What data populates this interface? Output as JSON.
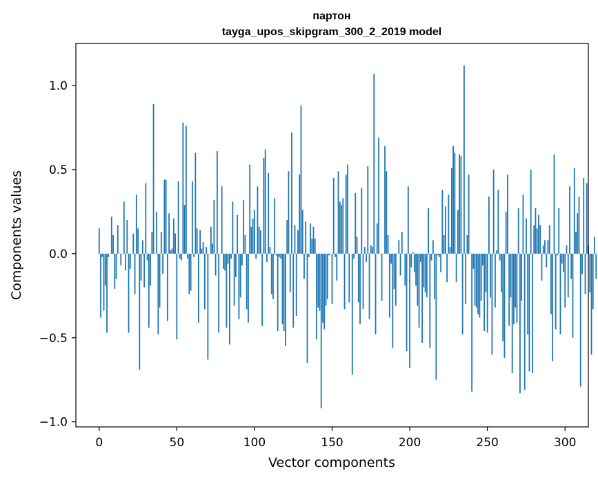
{
  "chart_data": {
    "type": "bar",
    "title": "партон",
    "subtitle": "tayga_upos_skipgram_300_2_2019 model",
    "xlabel": "Vector components",
    "ylabel": "Components values",
    "xlim": [
      -15,
      315
    ],
    "ylim": [
      -1.03,
      1.25
    ],
    "xticks": [
      0,
      50,
      100,
      150,
      200,
      250,
      300
    ],
    "xtick_labels": [
      "0",
      "50",
      "100",
      "150",
      "200",
      "250",
      "300"
    ],
    "yticks": [
      -1.0,
      -0.5,
      0.0,
      0.5,
      1.0
    ],
    "ytick_labels": [
      "−1.0",
      "−0.5",
      "0.0",
      "0.5",
      "1.0"
    ],
    "color": "#1f77b4",
    "values": [
      0.15,
      -0.38,
      -0.02,
      -0.34,
      -0.19,
      -0.47,
      -0.02,
      0.0,
      0.22,
      0.11,
      -0.21,
      -0.15,
      0.17,
      0.0,
      -0.07,
      0.0,
      0.31,
      -0.1,
      0.2,
      -0.47,
      -0.09,
      0.0,
      0.12,
      -0.24,
      0.35,
      0.15,
      -0.69,
      -0.16,
      0.08,
      -0.2,
      0.42,
      -0.04,
      -0.44,
      -0.19,
      0.13,
      0.89,
      0.0,
      0.25,
      -0.48,
      -0.32,
      0.13,
      -0.12,
      0.44,
      0.44,
      -0.4,
      0.24,
      0.02,
      0.03,
      0.21,
      0.12,
      -0.51,
      0.43,
      -0.03,
      -0.04,
      0.78,
      0.29,
      0.76,
      -0.03,
      -0.24,
      -0.22,
      0.43,
      -0.02,
      0.6,
      0.15,
      -0.41,
      0.14,
      0.03,
      0.07,
      -0.33,
      0.04,
      -0.63,
      0.0,
      0.16,
      0.06,
      0.32,
      -0.13,
      0.61,
      -0.47,
      0.0,
      0.4,
      -0.09,
      -0.1,
      -0.44,
      -0.06,
      -0.54,
      -0.03,
      0.31,
      -0.31,
      -0.14,
      0.23,
      -0.39,
      -0.26,
      -0.07,
      0.32,
      0.11,
      -0.33,
      -0.41,
      0.53,
      0.16,
      0.21,
      0.26,
      -0.03,
      0.4,
      0.16,
      0.14,
      -0.43,
      0.57,
      0.62,
      -0.05,
      0.48,
      0.04,
      -0.24,
      -0.27,
      0.33,
      -0.01,
      -0.46,
      -0.02,
      -0.03,
      -0.42,
      -0.46,
      -0.55,
      0.2,
      0.49,
      -0.23,
      0.72,
      -0.44,
      0.17,
      -0.37,
      0.14,
      0.47,
      0.88,
      0.26,
      -0.15,
      0.19,
      -0.65,
      -0.02,
      0.18,
      0.09,
      0.16,
      0.09,
      -0.51,
      -0.32,
      -0.34,
      -0.92,
      -0.41,
      -0.45,
      -0.31,
      -0.27,
      -0.01,
      0.0,
      -0.3,
      0.45,
      -0.02,
      -0.16,
      0.49,
      0.31,
      0.29,
      0.33,
      -0.33,
      0.47,
      0.53,
      -0.29,
      0.0,
      -0.72,
      -0.03,
      0.36,
      0.1,
      -0.29,
      -0.42,
      0.39,
      -0.33,
      0.04,
      -0.05,
      0.52,
      -0.39,
      0.05,
      0.04,
      1.07,
      -0.48,
      0.18,
      0.69,
      0.0,
      -0.28,
      0.0,
      0.64,
      0.49,
      0.11,
      -0.38,
      -0.06,
      -0.56,
      -0.21,
      -0.31,
      0.0,
      0.08,
      -0.13,
      0.13,
      0.0,
      -0.19,
      -0.58,
      0.4,
      -0.68,
      -0.08,
      0.01,
      -0.11,
      -0.19,
      -0.31,
      -0.44,
      -0.05,
      -0.53,
      -0.2,
      -0.23,
      -0.26,
      0.27,
      -0.56,
      -0.04,
      0.08,
      -0.27,
      -0.75,
      -0.01,
      -0.02,
      -0.11,
      0.38,
      0.11,
      0.28,
      -0.17,
      0.35,
      0.04,
      0.51,
      0.64,
      0.6,
      -0.17,
      0.26,
      0.59,
      0.58,
      -0.48,
      1.12,
      -0.3,
      0.11,
      0.47,
      0.0,
      -0.82,
      -0.09,
      -0.31,
      -0.32,
      -0.36,
      -0.38,
      -0.28,
      -0.07,
      -0.46,
      -0.23,
      -0.47,
      0.34,
      -0.26,
      -0.6,
      0.5,
      -0.32,
      0.02,
      0.38,
      -0.04,
      -0.23,
      -0.52,
      -0.62,
      0.25,
      0.47,
      -0.43,
      -0.26,
      -0.71,
      -0.42,
      -0.32,
      -0.41,
      0.27,
      -0.83,
      -0.28,
      0.35,
      -0.81,
      0.21,
      -0.48,
      -0.7,
      0.5,
      -0.71,
      0.17,
      0.27,
      0.15,
      0.23,
      0.17,
      -0.16,
      0.05,
      0.08,
      -0.08,
      0.08,
      0.17,
      -0.36,
      -0.64,
      0.59,
      -0.45,
      -0.01,
      0.27,
      -0.48,
      -0.06,
      -0.11,
      -0.32,
      0.05,
      -0.26,
      0.4,
      -0.15,
      -0.5,
      0.51,
      0.13,
      0.24,
      0.34,
      -0.79,
      -0.12,
      0.45,
      -0.24,
      0.42,
      0.05,
      -0.23,
      -0.6,
      -0.33,
      0.1,
      -0.15
    ]
  }
}
